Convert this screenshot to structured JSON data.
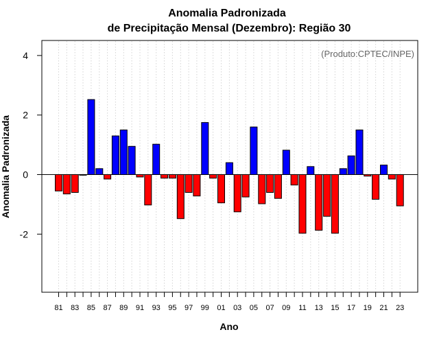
{
  "chart_data": {
    "type": "bar",
    "title": "Anomalia Padronizada",
    "subtitle": "de Precipitação Mensal (Dezembro): Região 30",
    "xlabel": "Ano",
    "ylabel": "Anomalia Padronizada",
    "annotation": "(Produto:CPTEC/INPE)",
    "ylim": [
      -4,
      4.5
    ],
    "yticks": [
      -2,
      0,
      2,
      4
    ],
    "grid": "vertical dotted",
    "positive_color": "#0000ff",
    "negative_color": "#ff0000",
    "categories": [
      "1981",
      "1982",
      "1983",
      "1984",
      "1985",
      "1986",
      "1987",
      "1988",
      "1989",
      "1990",
      "1991",
      "1992",
      "1993",
      "1994",
      "1995",
      "1996",
      "1997",
      "1998",
      "1999",
      "2000",
      "2001",
      "2002",
      "2003",
      "2004",
      "2005",
      "2006",
      "2007",
      "2008",
      "2009",
      "2010",
      "2011",
      "2012",
      "2013",
      "2014",
      "2015",
      "2016",
      "2017",
      "2018",
      "2019",
      "2020",
      "2021",
      "2022",
      "2023"
    ],
    "xtick_labels": [
      {
        "index": 0,
        "label": "81"
      },
      {
        "index": 2,
        "label": "83"
      },
      {
        "index": 4,
        "label": "85"
      },
      {
        "index": 6,
        "label": "87"
      },
      {
        "index": 8,
        "label": "89"
      },
      {
        "index": 10,
        "label": "91"
      },
      {
        "index": 12,
        "label": "93"
      },
      {
        "index": 14,
        "label": "95"
      },
      {
        "index": 16,
        "label": "97"
      },
      {
        "index": 18,
        "label": "99"
      },
      {
        "index": 20,
        "label": "01"
      },
      {
        "index": 22,
        "label": "03"
      },
      {
        "index": 24,
        "label": "05"
      },
      {
        "index": 26,
        "label": "07"
      },
      {
        "index": 28,
        "label": "09"
      },
      {
        "index": 30,
        "label": "11"
      },
      {
        "index": 32,
        "label": "13"
      },
      {
        "index": 34,
        "label": "15"
      },
      {
        "index": 36,
        "label": "17"
      },
      {
        "index": 38,
        "label": "19"
      },
      {
        "index": 40,
        "label": "21"
      },
      {
        "index": 42,
        "label": "23"
      }
    ],
    "values": [
      -0.55,
      -0.65,
      -0.6,
      -0.02,
      2.52,
      0.2,
      -0.15,
      1.3,
      1.5,
      0.95,
      -0.08,
      -1.02,
      1.02,
      -0.12,
      -0.12,
      -1.48,
      -0.6,
      -0.72,
      1.75,
      -0.12,
      -0.95,
      0.4,
      -1.25,
      -0.75,
      1.6,
      -0.98,
      -0.6,
      -0.8,
      0.82,
      -0.35,
      -1.97,
      0.27,
      -1.87,
      -1.4,
      -1.97,
      0.2,
      0.63,
      1.5,
      -0.05,
      -0.83,
      0.32,
      -0.15,
      -1.05
    ]
  }
}
